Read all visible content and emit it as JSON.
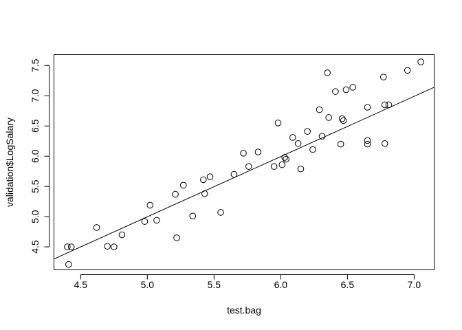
{
  "chart_data": {
    "type": "scatter",
    "title": "",
    "xlabel": "test.bag",
    "ylabel": "validation$LogSalary",
    "xlim": [
      4.3,
      7.15
    ],
    "ylim": [
      4.12,
      7.68
    ],
    "xticks": [
      "4.5",
      "5.0",
      "5.5",
      "6.0",
      "6.5",
      "7.0"
    ],
    "yticks": [
      "4.5",
      "5.0",
      "5.5",
      "6.0",
      "6.5",
      "7.0",
      "7.5"
    ],
    "grid": false,
    "legend": "none",
    "point_style": "open-circle",
    "points": [
      [
        4.4,
        4.5
      ],
      [
        4.43,
        4.5
      ],
      [
        4.41,
        4.21
      ],
      [
        4.62,
        4.82
      ],
      [
        4.7,
        4.51
      ],
      [
        4.75,
        4.5
      ],
      [
        4.81,
        4.7
      ],
      [
        4.98,
        4.92
      ],
      [
        5.02,
        5.19
      ],
      [
        5.07,
        4.94
      ],
      [
        5.21,
        5.37
      ],
      [
        5.22,
        4.65
      ],
      [
        5.27,
        5.52
      ],
      [
        5.34,
        5.01
      ],
      [
        5.42,
        5.61
      ],
      [
        5.43,
        5.38
      ],
      [
        5.47,
        5.66
      ],
      [
        5.55,
        5.07
      ],
      [
        5.65,
        5.7
      ],
      [
        5.72,
        6.05
      ],
      [
        5.76,
        5.83
      ],
      [
        5.83,
        6.07
      ],
      [
        5.95,
        5.83
      ],
      [
        5.98,
        6.55
      ],
      [
        6.01,
        5.86
      ],
      [
        6.03,
        5.98
      ],
      [
        6.04,
        5.95
      ],
      [
        6.09,
        6.31
      ],
      [
        6.13,
        6.21
      ],
      [
        6.15,
        5.79
      ],
      [
        6.2,
        6.41
      ],
      [
        6.24,
        6.11
      ],
      [
        6.29,
        6.77
      ],
      [
        6.31,
        6.33
      ],
      [
        6.35,
        7.38
      ],
      [
        6.36,
        6.64
      ],
      [
        6.41,
        7.07
      ],
      [
        6.45,
        6.2
      ],
      [
        6.46,
        6.62
      ],
      [
        6.47,
        6.59
      ],
      [
        6.49,
        7.1
      ],
      [
        6.54,
        7.14
      ],
      [
        6.65,
        6.81
      ],
      [
        6.65,
        6.26
      ],
      [
        6.65,
        6.2
      ],
      [
        6.77,
        7.31
      ],
      [
        6.78,
        6.85
      ],
      [
        6.78,
        6.21
      ],
      [
        6.81,
        6.85
      ],
      [
        6.95,
        7.42
      ],
      [
        7.05,
        7.56
      ]
    ],
    "fit_line": {
      "type": "linear",
      "x": [
        4.3,
        7.15
      ],
      "y": [
        4.3,
        7.14
      ]
    }
  }
}
